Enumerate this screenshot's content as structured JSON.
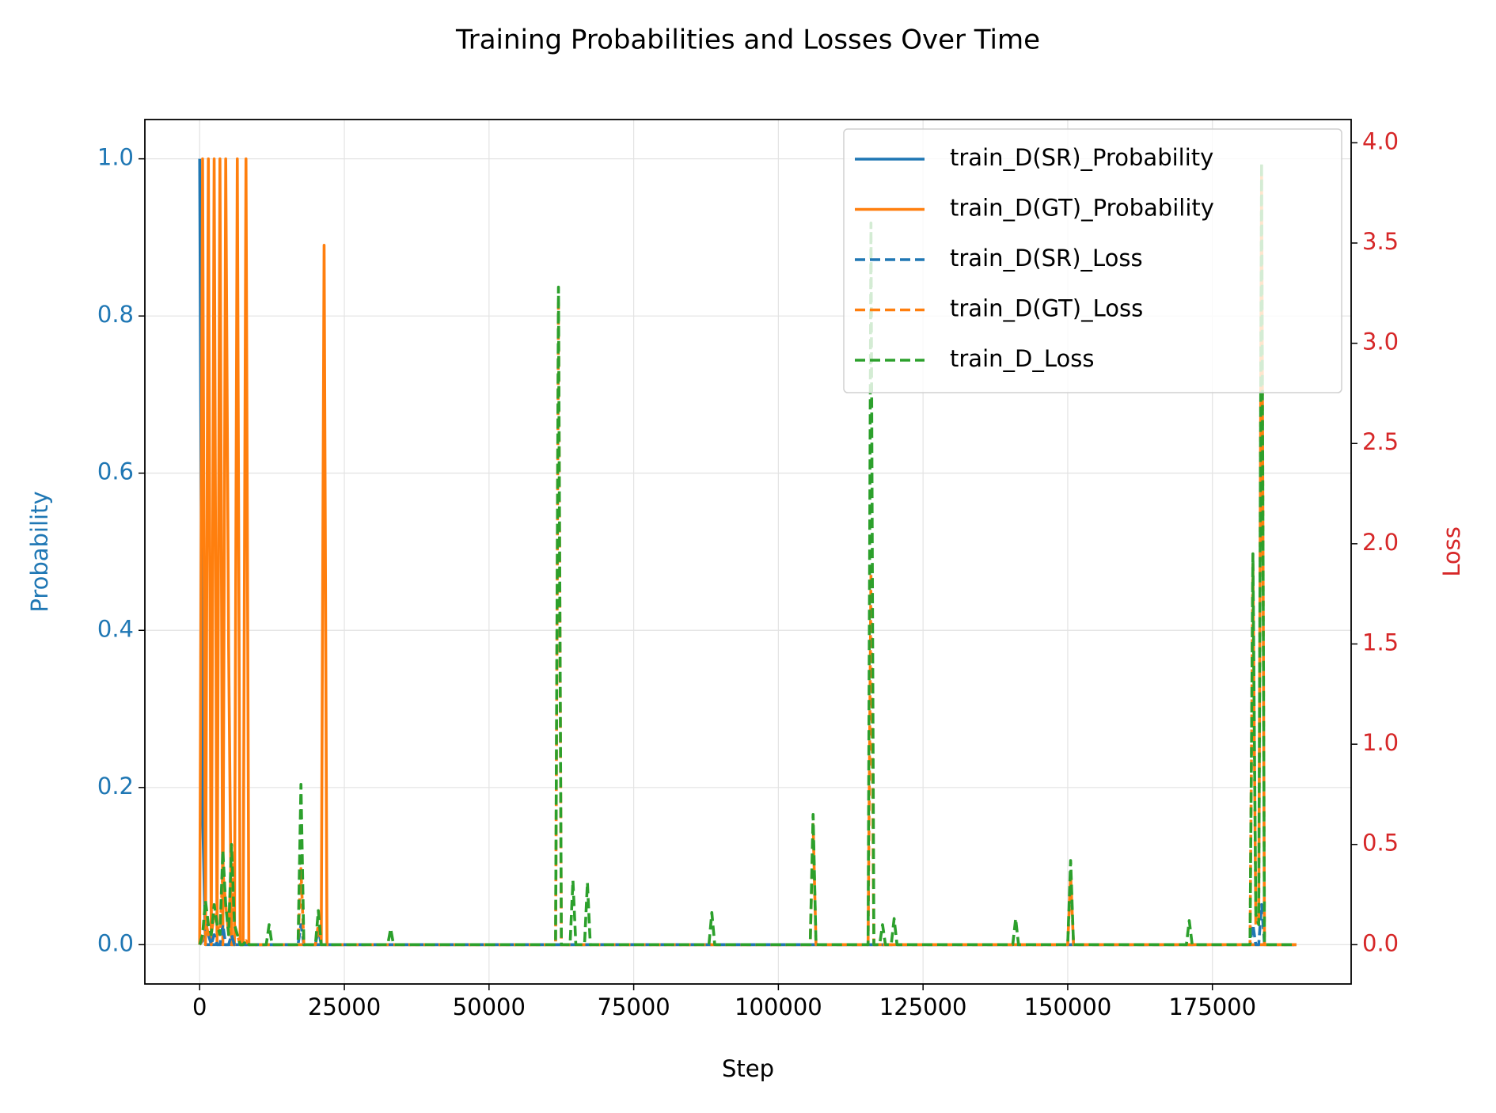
{
  "chart_data": {
    "type": "line",
    "title": "Training Probabilities and Losses Over Time",
    "xlabel": "Step",
    "ylabel": "Probability",
    "y2label": "Loss",
    "y_axis_color": "#1f77b4",
    "y2_axis_color": "#d62728",
    "grid": true,
    "legend": "upper right",
    "xlim": [
      -9475,
      198975
    ],
    "xticks": [
      0,
      25000,
      50000,
      75000,
      100000,
      125000,
      150000,
      175000
    ],
    "ylim": [
      -0.05,
      1.05
    ],
    "yticks": [
      {
        "value": 0,
        "label": "0.0"
      },
      0.2,
      0.4,
      0.6,
      0.8,
      {
        "value": 1,
        "label": "1.0"
      }
    ],
    "y2lim": [
      -0.196,
      4.116
    ],
    "y2ticks": [
      {
        "value": 0,
        "label": "0.0"
      },
      0.5,
      {
        "value": 1,
        "label": "1.0"
      },
      1.5,
      {
        "value": 2,
        "label": "2.0"
      },
      2.5,
      {
        "value": 3,
        "label": "3.0"
      },
      3.5,
      {
        "value": 4,
        "label": "4.0"
      }
    ],
    "x": [
      0,
      500,
      1000,
      1500,
      2000,
      2500,
      3000,
      3500,
      4000,
      4500,
      5000,
      5500,
      6000,
      6500,
      7000,
      7500,
      8000,
      8500,
      9000,
      11500,
      12000,
      12500,
      17000,
      17500,
      18000,
      20000,
      20500,
      21000,
      21500,
      22000,
      32500,
      33000,
      33500,
      61500,
      62000,
      62500,
      64000,
      64500,
      65000,
      66500,
      67000,
      67500,
      88000,
      88500,
      89000,
      105500,
      106000,
      106500,
      115500,
      116000,
      116500,
      117500,
      118000,
      118500,
      119500,
      120000,
      120500,
      140500,
      141000,
      141500,
      150000,
      150500,
      151000,
      170500,
      171000,
      171500,
      181500,
      182000,
      182500,
      183000,
      183500,
      184000,
      189500
    ],
    "series": [
      {
        "name": "train_D(SR)_Probability",
        "color": "#1f77b4",
        "linestyle": "solid",
        "axis": "y",
        "values": [
          1,
          0.17,
          0,
          0,
          0,
          0,
          0,
          0,
          0,
          0,
          0,
          0,
          0,
          0,
          0,
          0,
          0,
          0,
          0,
          0,
          0,
          0,
          0,
          0,
          0,
          0,
          0.02,
          0,
          0,
          0,
          0,
          0,
          0,
          0,
          0,
          0,
          0,
          0,
          0,
          0,
          0,
          0,
          0,
          0,
          0,
          0,
          0,
          0,
          0,
          0,
          0,
          0,
          0,
          0,
          0,
          0,
          0,
          0,
          0,
          0,
          0,
          0,
          0,
          0,
          0,
          0,
          0,
          0,
          0,
          0,
          0,
          0,
          0
        ]
      },
      {
        "name": "train_D(GT)_Probability",
        "color": "#ff7f0e",
        "linestyle": "solid",
        "axis": "y",
        "values": [
          0,
          1,
          0,
          1,
          0,
          1,
          0,
          1,
          0,
          1,
          0.38,
          0,
          0,
          1,
          0,
          0,
          1,
          0,
          0,
          0,
          0,
          0,
          0,
          0,
          0,
          0,
          0,
          0,
          0.89,
          0,
          0,
          0,
          0,
          0,
          0,
          0,
          0,
          0,
          0,
          0,
          0,
          0,
          0,
          0,
          0,
          0,
          0,
          0,
          0,
          0,
          0,
          0,
          0,
          0,
          0,
          0,
          0,
          0,
          0,
          0,
          0,
          0,
          0,
          0,
          0,
          0,
          0,
          0,
          0,
          0,
          0,
          0,
          0
        ]
      },
      {
        "name": "train_D(SR)_Loss",
        "color": "#1f77b4",
        "linestyle": "dashed",
        "axis": "y2",
        "values": [
          0,
          0.02,
          0.1,
          0.05,
          0,
          0.05,
          0,
          0,
          0.1,
          0,
          0,
          0.05,
          0,
          0,
          0,
          0,
          0,
          0,
          0,
          0,
          0,
          0,
          0,
          0.1,
          0,
          0,
          0,
          0,
          0,
          0,
          0,
          0,
          0,
          0,
          0,
          0,
          0,
          0,
          0,
          0,
          0,
          0,
          0,
          0,
          0,
          0,
          0,
          0,
          0,
          0,
          0,
          0,
          0,
          0,
          0,
          0,
          0,
          0,
          0,
          0,
          0,
          0,
          0,
          0,
          0,
          0,
          0,
          0.1,
          0,
          0,
          0.2,
          0,
          0
        ]
      },
      {
        "name": "train_D(GT)_Loss",
        "color": "#ff7f0e",
        "linestyle": "dashed",
        "axis": "y2",
        "values": [
          0,
          0.03,
          0.12,
          0.05,
          0.05,
          0.15,
          0.1,
          0.05,
          0.37,
          0.2,
          0.05,
          0.45,
          0.1,
          0.05,
          0,
          0,
          0.02,
          0,
          0,
          0,
          0,
          0,
          0,
          0.38,
          0,
          0,
          0.1,
          0,
          0,
          0,
          0,
          0,
          0,
          0,
          3.2,
          0,
          0,
          0,
          0,
          0,
          0,
          0,
          0,
          0,
          0,
          0,
          0.6,
          0,
          0,
          1.85,
          0,
          0,
          0,
          0,
          0,
          0,
          0,
          0,
          0,
          0,
          0,
          0.35,
          0,
          0,
          0,
          0,
          0,
          1.9,
          0.1,
          0.1,
          3.85,
          0,
          0
        ]
      },
      {
        "name": "train_D_Loss",
        "color": "#2ca02c",
        "linestyle": "dashed",
        "axis": "y2",
        "values": [
          0,
          0.05,
          0.22,
          0.1,
          0.05,
          0.2,
          0.1,
          0.05,
          0.47,
          0.2,
          0.05,
          0.5,
          0.1,
          0.05,
          0,
          0,
          0.02,
          0,
          0,
          0,
          0.1,
          0,
          0,
          0.8,
          0,
          0,
          0.17,
          0,
          0,
          0,
          0,
          0.08,
          0,
          0,
          3.28,
          0,
          0,
          0.32,
          0,
          0,
          0.31,
          0,
          0,
          0.16,
          0,
          0,
          0.65,
          0,
          0,
          3.6,
          0,
          0,
          0.1,
          0,
          0,
          0.13,
          0,
          0,
          0.13,
          0,
          0,
          0.42,
          0,
          0,
          0.12,
          0,
          0,
          1.95,
          0.15,
          0.1,
          3.9,
          0,
          0
        ]
      }
    ]
  }
}
